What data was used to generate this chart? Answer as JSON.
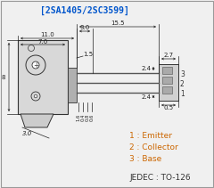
{
  "title": "[2SA1405/2SC3599]",
  "title_color": "#0055cc",
  "bg_color": "#f0f0f0",
  "legend_items": [
    "1 : Emitter",
    "2 : Collector",
    "3 : Base"
  ],
  "legend_color": "#cc6600",
  "jedec_text": "JEDEC : TO-126",
  "jedec_color": "#333333",
  "dim_color": "#222222",
  "body_fill": "#d8d8d8",
  "body_edge": "#333333",
  "lead_color": "#555555",
  "rbox_fill": "#d0d0d0",
  "rbox_edge": "#333333",
  "tab_fill": "#cccccc",
  "dim_fs": 5.0,
  "title_fs": 7.0,
  "legend_fs": 6.5,
  "jedec_fs": 6.5,
  "num_fs": 5.5
}
